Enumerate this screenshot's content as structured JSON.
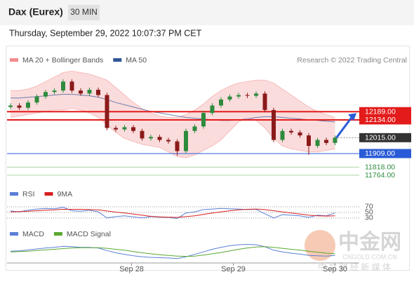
{
  "header": {
    "title": "Dax (Eurex)",
    "interval": "30 MIN",
    "timestamp": "Thursday, September 29, 2022 10:07:37 PM CET"
  },
  "copyright": "Research © 2022 Trading Central",
  "watermark": {
    "logo": "中金网",
    "url": "CNGOLD.COM.CN",
    "slogan": "中 文 财 经 新 媒 体"
  },
  "chart_data": {
    "type": "candlestick",
    "xlim": [
      -0.4,
      39.2
    ],
    "ylim": [
      11740,
      12490
    ],
    "up_color": "#2e8b3e",
    "down_color": "#8b1a1a",
    "open": [
      12220,
      12230,
      12215,
      12250,
      12290,
      12320,
      12330,
      12390,
      12330,
      12310,
      12335,
      12300,
      12080,
      12070,
      12085,
      12060,
      12010,
      12020,
      12000,
      11990,
      11925,
      12060,
      12090,
      12180,
      12230,
      12270,
      12290,
      12300,
      12295,
      12310,
      12200,
      12000,
      12060,
      12050,
      12030,
      11960,
      12000,
      11980
    ],
    "high": [
      12245,
      12245,
      12265,
      12305,
      12335,
      12345,
      12405,
      12405,
      12345,
      12350,
      12350,
      12315,
      12095,
      12100,
      12100,
      12075,
      12035,
      12035,
      12015,
      12005,
      12075,
      12105,
      12195,
      12245,
      12285,
      12305,
      12315,
      12315,
      12325,
      12325,
      12215,
      12075,
      12075,
      12065,
      12045,
      12015,
      12015,
      12030
    ],
    "low": [
      12205,
      12200,
      12200,
      12235,
      12275,
      12305,
      12315,
      12315,
      12295,
      12295,
      12285,
      12065,
      12055,
      12055,
      12045,
      11995,
      11995,
      11985,
      11975,
      11895,
      11910,
      12045,
      12075,
      12165,
      12215,
      12255,
      12275,
      12280,
      12280,
      12185,
      11985,
      11985,
      12035,
      12015,
      11900,
      11945,
      11965,
      11965
    ],
    "close": [
      12230,
      12215,
      12250,
      12290,
      12320,
      12330,
      12390,
      12330,
      12310,
      12335,
      12300,
      12080,
      12070,
      12085,
      12060,
      12010,
      12020,
      12000,
      11990,
      11925,
      12060,
      12090,
      12180,
      12230,
      12270,
      12290,
      12300,
      12295,
      12310,
      12200,
      12000,
      12060,
      12050,
      12030,
      11960,
      12000,
      11980,
      12015
    ],
    "overlays": [
      {
        "name": "MA 20 + Bollinger Bands",
        "color": "#f28b8b",
        "upper": [
          12330,
          12330,
          12340,
          12360,
          12390,
          12420,
          12450,
          12460,
          12450,
          12440,
          12420,
          12400,
          12350,
          12300,
          12250,
          12210,
          12180,
          12160,
          12150,
          12150,
          12170,
          12200,
          12240,
          12290,
          12330,
          12360,
          12380,
          12390,
          12400,
          12400,
          12380,
          12340,
          12300,
          12260,
          12220,
          12190,
          12170,
          12150
        ],
        "lower": [
          12150,
          12160,
          12170,
          12180,
          12190,
          12200,
          12200,
          12210,
          12200,
          12180,
          12150,
          12100,
          12050,
          12010,
          11990,
          11970,
          11960,
          11950,
          11920,
          11890,
          11880,
          11900,
          11930,
          11960,
          12000,
          12060,
          12120,
          12150,
          12130,
          12080,
          12010,
          11960,
          11940,
          11930,
          11920,
          11920,
          11930,
          11940
        ]
      },
      {
        "name": "MA 50",
        "color": "#2f5597",
        "values": [
          12280,
          12280,
          12285,
          12290,
          12295,
          12300,
          12305,
          12305,
          12300,
          12295,
          12285,
          12270,
          12250,
          12235,
          12220,
          12205,
          12190,
          12180,
          12170,
          12160,
          12150,
          12145,
          12140,
          12135,
          12130,
          12130,
          12135,
          12140,
          12150,
          12155,
          12155,
          12150,
          12145,
          12140,
          12135,
          12130,
          12125,
          12120
        ]
      }
    ],
    "levels": [
      {
        "value": 12189,
        "label": "12189.00",
        "color": "#e31b1b"
      },
      {
        "value": 12134,
        "label": "12134.00",
        "color": "#e31b1b"
      },
      {
        "value": 12015,
        "label": "12015.00",
        "color": "#333333"
      },
      {
        "value": 11909,
        "label": "11909.00",
        "color": "#2a5bd7"
      },
      {
        "value": 11818,
        "label": "11818.00",
        "color": "#2e8b3e"
      },
      {
        "value": 11764,
        "label": "11764.00",
        "color": "#2e8b3e"
      }
    ],
    "xticks": [
      {
        "value": 13.8,
        "label": "Sep 28"
      },
      {
        "value": 25.4,
        "label": "Sep 29"
      },
      {
        "value": 37,
        "label": "Sep 30"
      }
    ],
    "rsi": {
      "ylim": [
        12,
        95
      ],
      "yticks": [
        70,
        50,
        30
      ],
      "series": [
        {
          "name": "RSI",
          "color": "#5b7fd6",
          "values": [
            55,
            52,
            58,
            62,
            64,
            63,
            68,
            56,
            54,
            58,
            52,
            30,
            35,
            38,
            34,
            30,
            35,
            33,
            32,
            28,
            48,
            52,
            60,
            62,
            64,
            63,
            62,
            60,
            61,
            45,
            30,
            42,
            40,
            38,
            32,
            40,
            38,
            48
          ]
        },
        {
          "name": "9MA",
          "color": "#d62020",
          "values": [
            52,
            53,
            54,
            56,
            58,
            59,
            61,
            61,
            61,
            60,
            59,
            55,
            51,
            48,
            44,
            40,
            36,
            34,
            33,
            32,
            35,
            38,
            43,
            48,
            52,
            56,
            59,
            61,
            62,
            60,
            56,
            52,
            48,
            44,
            40,
            38,
            37,
            38
          ]
        }
      ]
    },
    "macd": {
      "ylim": [
        -30,
        35
      ],
      "series": [
        {
          "name": "MACD",
          "color": "#5b7fd6",
          "values": [
            2,
            3,
            6,
            9,
            12,
            14,
            17,
            16,
            14,
            14,
            12,
            4,
            -3,
            -8,
            -12,
            -15,
            -17,
            -18,
            -19,
            -21,
            -15,
            -8,
            0,
            8,
            14,
            19,
            22,
            23,
            22,
            16,
            5,
            0,
            -4,
            -7,
            -11,
            -12,
            -13,
            -11
          ]
        },
        {
          "name": "MACD Signal",
          "color": "#5aa832",
          "values": [
            0,
            1,
            2,
            4,
            6,
            8,
            10,
            12,
            13,
            13,
            13,
            11,
            8,
            5,
            1,
            -3,
            -6,
            -9,
            -11,
            -13,
            -14,
            -13,
            -10,
            -6,
            -2,
            3,
            8,
            12,
            15,
            16,
            14,
            11,
            8,
            5,
            2,
            -1,
            -4,
            -6
          ]
        }
      ]
    }
  }
}
